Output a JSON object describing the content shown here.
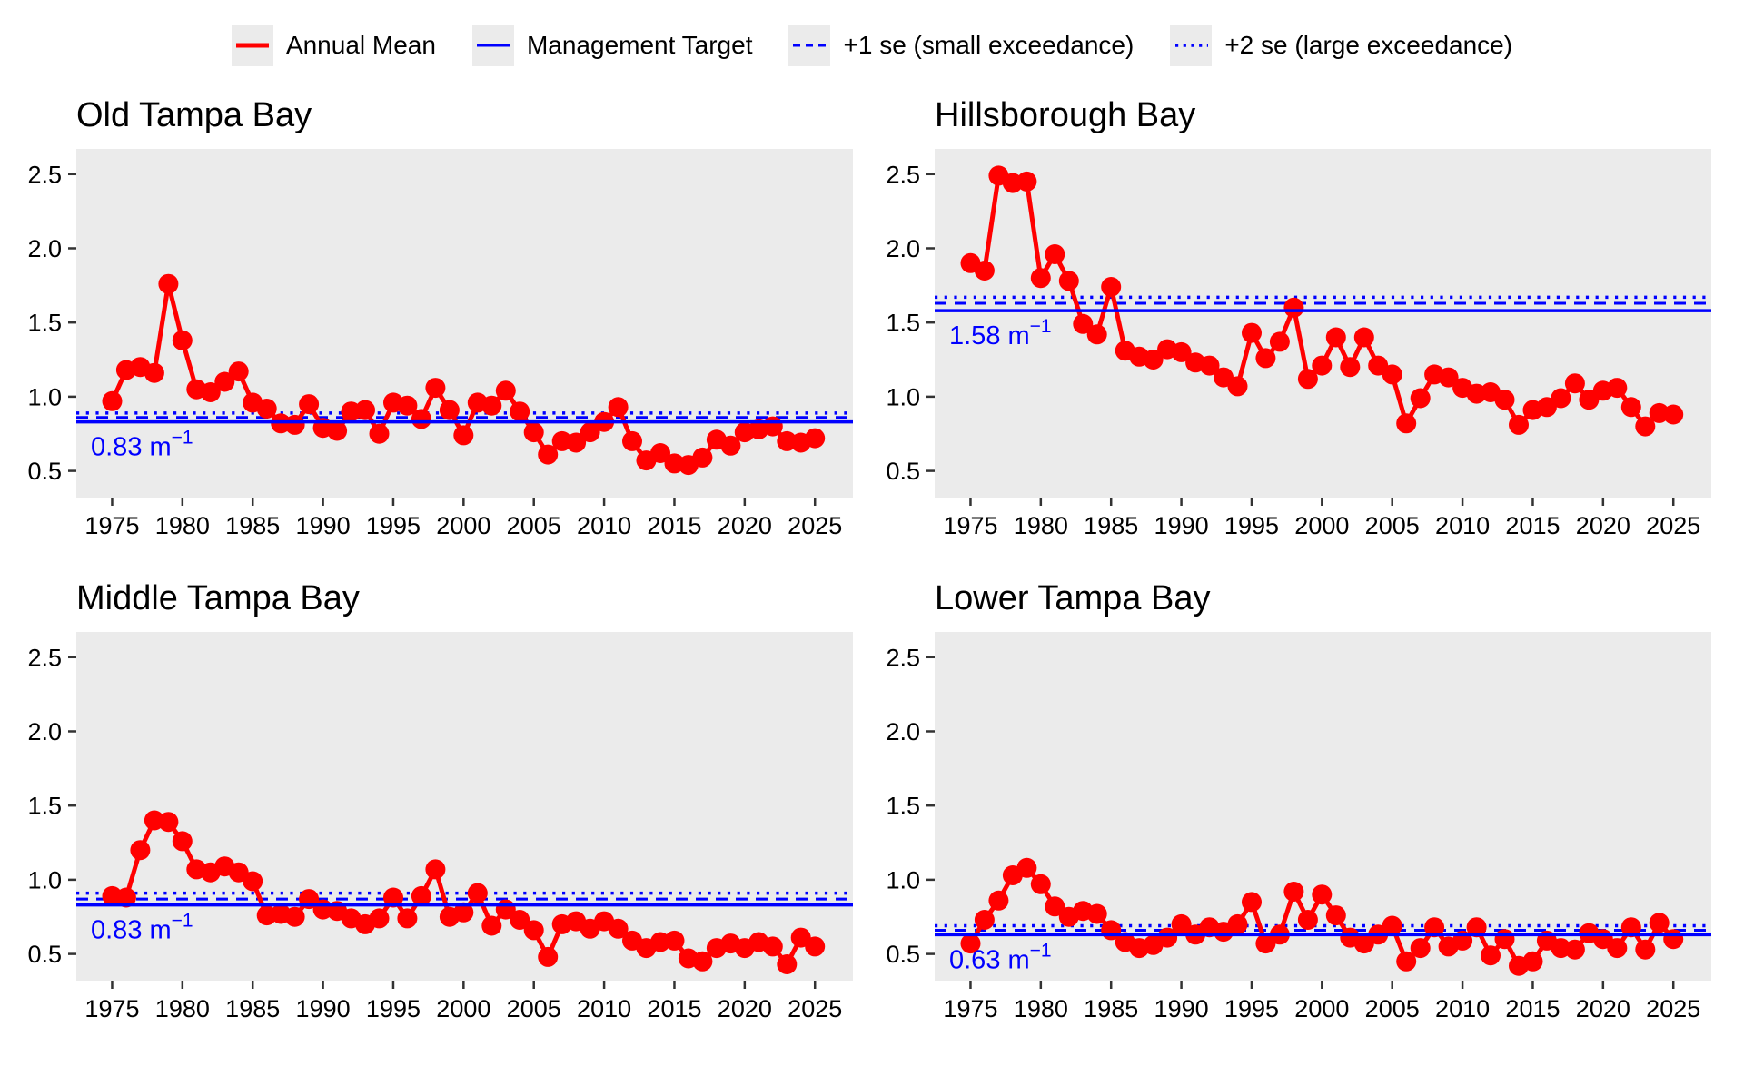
{
  "legend": {
    "items": [
      {
        "label": "Annual Mean",
        "style": "solid",
        "color_key": "annual_mean"
      },
      {
        "label": "Management Target",
        "style": "solid",
        "color_key": "target"
      },
      {
        "label": "+1 se (small exceedance)",
        "style": "dashed",
        "color_key": "target"
      },
      {
        "label": "+2 se (large exceedance)",
        "style": "dotted",
        "color_key": "target"
      }
    ]
  },
  "colors": {
    "annual_mean": "#FF0000",
    "target": "#0000FF",
    "panel_background": "#EBEBEB",
    "text": "#000000",
    "tick": "#333333"
  },
  "chart_data": [
    {
      "type": "line",
      "title": "Old Tampa Bay",
      "series_name": "Annual Mean",
      "xlabel": "",
      "ylabel": "",
      "grid": false,
      "legend_position": "top",
      "xlim": [
        1972.45,
        2027.7
      ],
      "ylim": [
        0.32,
        2.67
      ],
      "xticks": [
        1975,
        1980,
        1985,
        1990,
        1995,
        2000,
        2005,
        2010,
        2015,
        2020,
        2025
      ],
      "yticks": [
        0.5,
        1.0,
        1.5,
        2.0,
        2.5
      ],
      "years": [
        1975,
        1976,
        1977,
        1978,
        1979,
        1980,
        1981,
        1982,
        1983,
        1984,
        1985,
        1986,
        1987,
        1988,
        1989,
        1990,
        1991,
        1992,
        1993,
        1994,
        1995,
        1996,
        1997,
        1998,
        1999,
        2000,
        2001,
        2002,
        2003,
        2004,
        2005,
        2006,
        2007,
        2008,
        2009,
        2010,
        2011,
        2012,
        2013,
        2014,
        2015,
        2016,
        2017,
        2018,
        2019,
        2020,
        2021,
        2022,
        2023,
        2024,
        2025
      ],
      "values": [
        0.97,
        1.18,
        1.2,
        1.16,
        1.76,
        1.38,
        1.05,
        1.03,
        1.1,
        1.17,
        0.96,
        0.92,
        0.82,
        0.81,
        0.95,
        0.79,
        0.77,
        0.9,
        0.91,
        0.75,
        0.96,
        0.94,
        0.85,
        1.06,
        0.91,
        0.74,
        0.96,
        0.94,
        1.04,
        0.9,
        0.76,
        0.61,
        0.7,
        0.69,
        0.76,
        0.83,
        0.93,
        0.7,
        0.57,
        0.62,
        0.55,
        0.54,
        0.59,
        0.71,
        0.67,
        0.76,
        0.78,
        0.8,
        0.7,
        0.69,
        0.72
      ],
      "target": {
        "value": 0.83,
        "plus1se": 0.86,
        "plus2se": 0.89,
        "label_value": "0.83",
        "label_unit": "m",
        "label_exp": "−1"
      }
    },
    {
      "type": "line",
      "title": "Hillsborough Bay",
      "series_name": "Annual Mean",
      "xlabel": "",
      "ylabel": "",
      "grid": false,
      "legend_position": "top",
      "xlim": [
        1972.45,
        2027.7
      ],
      "ylim": [
        0.32,
        2.67
      ],
      "xticks": [
        1975,
        1980,
        1985,
        1990,
        1995,
        2000,
        2005,
        2010,
        2015,
        2020,
        2025
      ],
      "yticks": [
        0.5,
        1.0,
        1.5,
        2.0,
        2.5
      ],
      "years": [
        1975,
        1976,
        1977,
        1978,
        1979,
        1980,
        1981,
        1982,
        1983,
        1984,
        1985,
        1986,
        1987,
        1988,
        1989,
        1990,
        1991,
        1992,
        1993,
        1994,
        1995,
        1996,
        1997,
        1998,
        1999,
        2000,
        2001,
        2002,
        2003,
        2004,
        2005,
        2006,
        2007,
        2008,
        2009,
        2010,
        2011,
        2012,
        2013,
        2014,
        2015,
        2016,
        2017,
        2018,
        2019,
        2020,
        2021,
        2022,
        2023,
        2024,
        2025
      ],
      "values": [
        1.9,
        1.85,
        2.49,
        2.44,
        2.45,
        1.8,
        1.96,
        1.78,
        1.49,
        1.42,
        1.74,
        1.31,
        1.27,
        1.25,
        1.32,
        1.3,
        1.23,
        1.21,
        1.13,
        1.07,
        1.43,
        1.26,
        1.37,
        1.6,
        1.12,
        1.21,
        1.4,
        1.2,
        1.4,
        1.21,
        1.15,
        0.82,
        0.99,
        1.15,
        1.13,
        1.06,
        1.02,
        1.03,
        0.98,
        0.81,
        0.91,
        0.93,
        0.99,
        1.09,
        0.98,
        1.04,
        1.06,
        0.93,
        0.8,
        0.89,
        0.88
      ],
      "target": {
        "value": 1.58,
        "plus1se": 1.63,
        "plus2se": 1.67,
        "label_value": "1.58",
        "label_unit": "m",
        "label_exp": "−1"
      }
    },
    {
      "type": "line",
      "title": "Middle Tampa Bay",
      "series_name": "Annual Mean",
      "xlabel": "",
      "ylabel": "",
      "grid": false,
      "legend_position": "top",
      "xlim": [
        1972.45,
        2027.7
      ],
      "ylim": [
        0.32,
        2.67
      ],
      "xticks": [
        1975,
        1980,
        1985,
        1990,
        1995,
        2000,
        2005,
        2010,
        2015,
        2020,
        2025
      ],
      "yticks": [
        0.5,
        1.0,
        1.5,
        2.0,
        2.5
      ],
      "years": [
        1975,
        1976,
        1977,
        1978,
        1979,
        1980,
        1981,
        1982,
        1983,
        1984,
        1985,
        1986,
        1987,
        1988,
        1989,
        1990,
        1991,
        1992,
        1993,
        1994,
        1995,
        1996,
        1997,
        1998,
        1999,
        2000,
        2001,
        2002,
        2003,
        2004,
        2005,
        2006,
        2007,
        2008,
        2009,
        2010,
        2011,
        2012,
        2013,
        2014,
        2015,
        2016,
        2017,
        2018,
        2019,
        2020,
        2021,
        2022,
        2023,
        2024,
        2025
      ],
      "values": [
        0.89,
        0.88,
        1.2,
        1.4,
        1.39,
        1.26,
        1.07,
        1.05,
        1.09,
        1.05,
        0.99,
        0.76,
        0.77,
        0.75,
        0.87,
        0.8,
        0.79,
        0.74,
        0.7,
        0.74,
        0.88,
        0.74,
        0.89,
        1.07,
        0.75,
        0.78,
        0.91,
        0.69,
        0.8,
        0.73,
        0.66,
        0.48,
        0.7,
        0.72,
        0.67,
        0.72,
        0.67,
        0.59,
        0.54,
        0.58,
        0.59,
        0.47,
        0.45,
        0.54,
        0.57,
        0.54,
        0.58,
        0.55,
        0.43,
        0.61,
        0.55
      ],
      "target": {
        "value": 0.83,
        "plus1se": 0.87,
        "plus2se": 0.91,
        "label_value": "0.83",
        "label_unit": "m",
        "label_exp": "−1"
      }
    },
    {
      "type": "line",
      "title": "Lower Tampa Bay",
      "series_name": "Annual Mean",
      "xlabel": "",
      "ylabel": "",
      "grid": false,
      "legend_position": "top",
      "xlim": [
        1972.45,
        2027.7
      ],
      "ylim": [
        0.32,
        2.67
      ],
      "xticks": [
        1975,
        1980,
        1985,
        1990,
        1995,
        2000,
        2005,
        2010,
        2015,
        2020,
        2025
      ],
      "yticks": [
        0.5,
        1.0,
        1.5,
        2.0,
        2.5
      ],
      "years": [
        1975,
        1976,
        1977,
        1978,
        1979,
        1980,
        1981,
        1982,
        1983,
        1984,
        1985,
        1986,
        1987,
        1988,
        1989,
        1990,
        1991,
        1992,
        1993,
        1994,
        1995,
        1996,
        1997,
        1998,
        1999,
        2000,
        2001,
        2002,
        2003,
        2004,
        2005,
        2006,
        2007,
        2008,
        2009,
        2010,
        2011,
        2012,
        2013,
        2014,
        2015,
        2016,
        2017,
        2018,
        2019,
        2020,
        2021,
        2022,
        2023,
        2024,
        2025
      ],
      "values": [
        0.57,
        0.73,
        0.86,
        1.03,
        1.08,
        0.97,
        0.82,
        0.75,
        0.79,
        0.77,
        0.66,
        0.58,
        0.54,
        0.56,
        0.61,
        0.7,
        0.63,
        0.68,
        0.65,
        0.7,
        0.85,
        0.57,
        0.63,
        0.92,
        0.73,
        0.9,
        0.76,
        0.61,
        0.57,
        0.63,
        0.69,
        0.45,
        0.54,
        0.68,
        0.55,
        0.59,
        0.68,
        0.49,
        0.6,
        0.42,
        0.45,
        0.59,
        0.54,
        0.53,
        0.64,
        0.6,
        0.54,
        0.68,
        0.53,
        0.71,
        0.6
      ],
      "target": {
        "value": 0.63,
        "plus1se": 0.66,
        "plus2se": 0.69,
        "label_value": "0.63",
        "label_unit": "m",
        "label_exp": "−1"
      }
    }
  ]
}
